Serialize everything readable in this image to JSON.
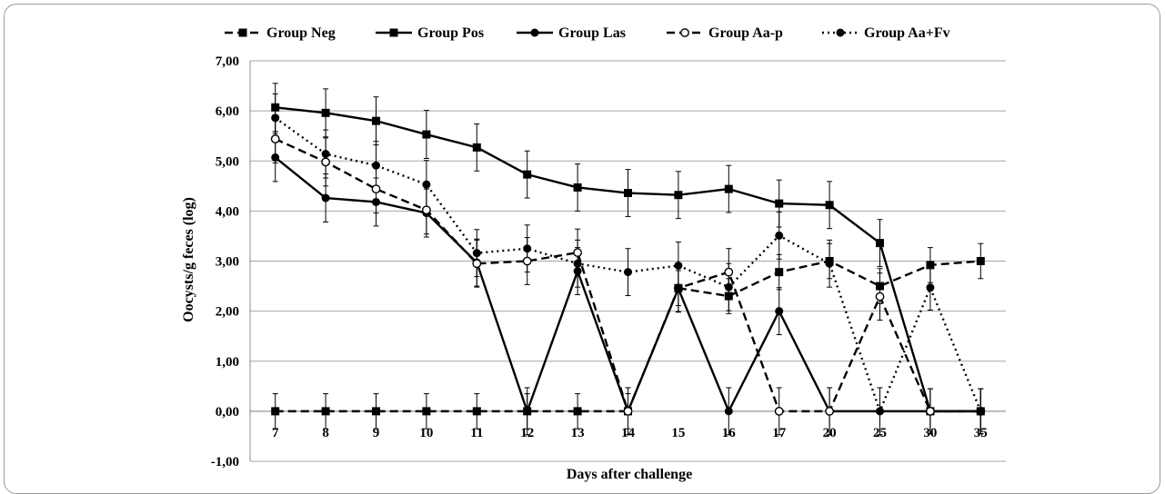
{
  "chart_data": {
    "type": "line",
    "xlabel": "Days after challenge",
    "ylabel": "Oocysts/g feces (log)",
    "ylim": [
      -1,
      7
    ],
    "ytick_labels": [
      "-1,00",
      "0,00",
      "1,00",
      "2,00",
      "3,00",
      "4,00",
      "5,00",
      "6,00",
      "7,00"
    ],
    "categories": [
      "7",
      "8",
      "9",
      "10",
      "11",
      "12",
      "13",
      "14",
      "15",
      "16",
      "17",
      "20",
      "25",
      "30",
      "35"
    ],
    "grid": "horizontal",
    "legend_position": "top",
    "series": [
      {
        "name": "Group Neg",
        "line_style": "dashed",
        "marker": "filled-square",
        "color": "#000000",
        "values": [
          0,
          0,
          0,
          0,
          0,
          0,
          0,
          0,
          null,
          null,
          null,
          null,
          null,
          null,
          null
        ],
        "error": [
          0.35,
          0.35,
          0.35,
          0.35,
          0.35,
          0.35,
          0.35,
          0.35,
          null,
          null,
          null,
          null,
          null,
          null,
          null
        ]
      },
      {
        "name": "Group Pos",
        "line_style": "solid",
        "marker": "filled-square",
        "color": "#000000",
        "values": [
          6.07,
          5.96,
          5.8,
          5.53,
          5.27,
          4.73,
          4.47,
          4.36,
          4.32,
          4.44,
          4.15,
          4.12,
          3.36,
          0,
          0
        ],
        "error": [
          0.48,
          0.48,
          0.48,
          0.48,
          0.47,
          0.47,
          0.47,
          0.47,
          0.47,
          0.47,
          0.47,
          0.47,
          0.47,
          0.45,
          0.45
        ]
      },
      {
        "name": "Group Las",
        "line_style": "solid",
        "marker": "filled-circle",
        "color": "#000000",
        "values": [
          5.07,
          4.26,
          4.18,
          3.96,
          2.97,
          0,
          2.8,
          0,
          2.45,
          0,
          2.0,
          0,
          0,
          0,
          0
        ],
        "error": [
          0.48,
          0.48,
          0.48,
          0.48,
          0.47,
          0.47,
          0.47,
          0.47,
          0.47,
          0.47,
          0.47,
          0.47,
          0.47,
          0.45,
          0.45
        ]
      },
      {
        "name": "Group Aa-p",
        "line_style": "dashed",
        "marker": "open-circle",
        "color": "#000000",
        "values": [
          5.44,
          4.98,
          4.44,
          4.02,
          2.95,
          3.0,
          3.17,
          0,
          2.46,
          2.78,
          0,
          0,
          2.29,
          0,
          0
        ],
        "error": [
          0.48,
          0.48,
          0.48,
          0.48,
          0.47,
          0.47,
          0.47,
          0.47,
          0.47,
          0.47,
          0.47,
          0.47,
          0.47,
          0.45,
          0.45
        ]
      },
      {
        "name": "Group Aa+Fv",
        "line_style": "dotted",
        "marker": "filled-circle",
        "color": "#000000",
        "values": [
          5.86,
          5.14,
          4.91,
          4.53,
          3.16,
          3.25,
          2.95,
          2.78,
          2.91,
          2.48,
          3.51,
          2.95,
          0,
          2.47,
          0
        ],
        "error": [
          0.48,
          0.48,
          0.48,
          0.48,
          0.47,
          0.47,
          0.47,
          0.47,
          0.47,
          0.47,
          0.47,
          0.47,
          0.47,
          0.45,
          0.45
        ]
      },
      {
        "name": "",
        "line_style": "dashed",
        "marker": "filled-square",
        "color": "#000000",
        "values": [
          null,
          null,
          null,
          null,
          null,
          null,
          null,
          null,
          2.46,
          2.3,
          2.78,
          3.0,
          2.5,
          2.92,
          3.0
        ],
        "error": [
          null,
          null,
          null,
          null,
          null,
          null,
          null,
          null,
          0.35,
          0.35,
          0.35,
          0.35,
          0.35,
          0.35,
          0.35
        ]
      }
    ]
  }
}
